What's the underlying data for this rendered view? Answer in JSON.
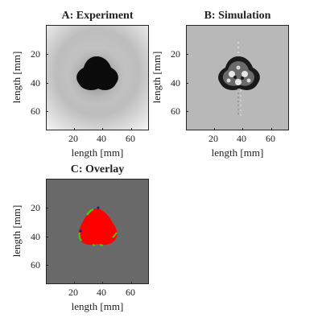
{
  "panels": [
    {
      "id": "A",
      "title": "A: Experiment",
      "xlabel": "length [mm]",
      "ylabel": "length [mm]",
      "xticks": [
        "20",
        "40",
        "60"
      ],
      "yticks": [
        "20",
        "40",
        "60"
      ]
    },
    {
      "id": "B",
      "title": "B: Simulation",
      "xlabel": "length [mm]",
      "ylabel": "length [mm]",
      "xticks": [
        "20",
        "40",
        "60"
      ],
      "yticks": [
        "20",
        "40",
        "60"
      ]
    },
    {
      "id": "C",
      "title": "C: Overlay",
      "xlabel": "length [mm]",
      "ylabel": "length [mm]",
      "xticks": [
        "20",
        "40",
        "60"
      ],
      "yticks": [
        "20",
        "40",
        "60"
      ]
    }
  ],
  "colors": {
    "overlay_background": "#696969",
    "overlay_fill": "#ff0000",
    "overlay_edge": "#39d10a",
    "simulation_background": "#b8b8b8",
    "axis": "#262626"
  }
}
